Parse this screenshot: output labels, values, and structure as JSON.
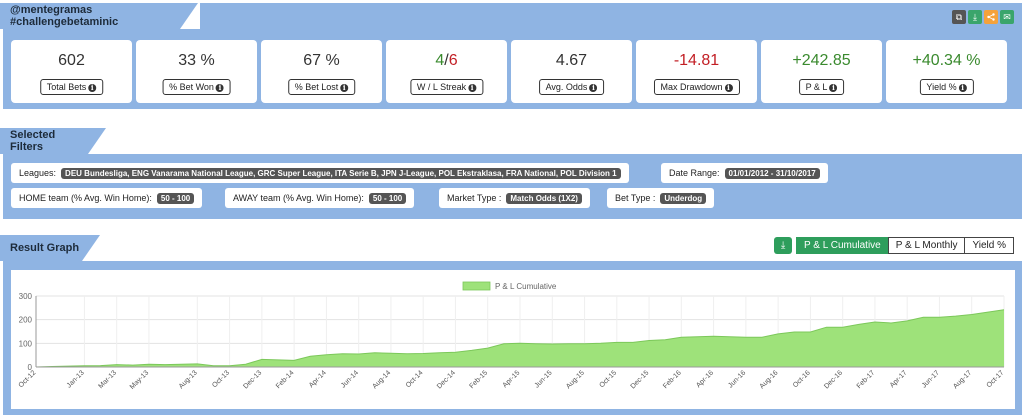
{
  "header": {
    "title": "@mentegramas #challengebetaminic",
    "actions": [
      {
        "name": "copy-icon",
        "glyph": "⧉",
        "color": "#555555"
      },
      {
        "name": "download-icon",
        "glyph": "⤓",
        "color": "#3aa56b"
      },
      {
        "name": "share-icon",
        "glyph": "<",
        "color": "#f5a23b"
      },
      {
        "name": "email-icon",
        "glyph": "✉",
        "color": "#3aa56b"
      }
    ]
  },
  "stats": [
    {
      "value": "602",
      "label": "Total Bets",
      "tone": ""
    },
    {
      "value": "33 %",
      "label": "% Bet Won",
      "tone": ""
    },
    {
      "value": "67 %",
      "label": "% Bet Lost",
      "tone": ""
    },
    {
      "value_green": "4",
      "value_sep": "/",
      "value_red": "6",
      "label": "W / L Streak",
      "tone": "streak"
    },
    {
      "value": "4.67",
      "label": "Avg. Odds",
      "tone": ""
    },
    {
      "value": "-14.81",
      "label": "Max Drawdown",
      "tone": "red"
    },
    {
      "value": "+242.85",
      "label": "P & L",
      "tone": "green"
    },
    {
      "value": "+40.34 %",
      "label": "Yield %",
      "tone": "green"
    }
  ],
  "info_glyph": "i",
  "filters": {
    "title": "Selected Filters",
    "leagues_label": "Leagues:",
    "leagues_value": "DEU Bundesliga, ENG Vanarama National League, GRC Super League, ITA Serie B, JPN J-League, POL Ekstraklasa, FRA National, POL Division 1",
    "date_label": "Date Range:",
    "date_value": "01/01/2012 - 31/10/2017",
    "home_label": "HOME team (% Avg. Win Home):",
    "home_value": "50 - 100",
    "away_label": "AWAY team (% Avg. Win Home):",
    "away_value": "50 - 100",
    "market_label": "Market Type :",
    "market_value": "Match Odds (1X2)",
    "bettype_label": "Bet Type :",
    "bettype_value": "Underdog"
  },
  "graph": {
    "title": "Result Graph",
    "download_glyph": "⤓",
    "tabs": [
      "P & L Cumulative",
      "P & L Monthly",
      "Yield %"
    ],
    "active_tab": 0
  },
  "chart_data": {
    "type": "area",
    "legend": "P & L Cumulative",
    "color": "#9ee27a",
    "ylim": [
      0,
      300
    ],
    "yticks": [
      0,
      100,
      200,
      300
    ],
    "x": [
      "Oct-12",
      "Nov-12",
      "Dec-12",
      "Jan-13",
      "Feb-13",
      "Mar-13",
      "Apr-13",
      "May-13",
      "Jun-13",
      "Jul-13",
      "Aug-13",
      "Sep-13",
      "Oct-13",
      "Nov-13",
      "Dec-13",
      "Jan-14",
      "Feb-14",
      "Mar-14",
      "Apr-14",
      "May-14",
      "Jun-14",
      "Jul-14",
      "Aug-14",
      "Sep-14",
      "Oct-14",
      "Nov-14",
      "Dec-14",
      "Jan-15",
      "Feb-15",
      "Mar-15",
      "Apr-15",
      "May-15",
      "Jun-15",
      "Jul-15",
      "Aug-15",
      "Sep-15",
      "Oct-15",
      "Nov-15",
      "Dec-15",
      "Jan-16",
      "Feb-16",
      "Mar-16",
      "Apr-16",
      "May-16",
      "Jun-16",
      "Jul-16",
      "Aug-16",
      "Sep-16",
      "Oct-16",
      "Nov-16",
      "Dec-16",
      "Jan-17",
      "Feb-17",
      "Mar-17",
      "Apr-17",
      "May-17",
      "Jun-17",
      "Jul-17",
      "Aug-17",
      "Sep-17",
      "Oct-17"
    ],
    "values": [
      0,
      2,
      4,
      5,
      6,
      10,
      8,
      12,
      10,
      12,
      13,
      5,
      5,
      12,
      32,
      30,
      28,
      45,
      52,
      56,
      55,
      60,
      58,
      56,
      57,
      60,
      62,
      70,
      80,
      98,
      100,
      98,
      97,
      98,
      98,
      100,
      104,
      104,
      112,
      115,
      126,
      128,
      130,
      128,
      126,
      126,
      140,
      148,
      148,
      168,
      168,
      180,
      190,
      186,
      195,
      210,
      210,
      215,
      222,
      232,
      242
    ],
    "tick_labels": [
      "Oct-12",
      "Jan-13",
      "Mar-13",
      "May-13",
      "Aug-13",
      "Oct-13",
      "Dec-13",
      "Feb-14",
      "Apr-14",
      "Jun-14",
      "Aug-14",
      "Oct-14",
      "Dec-14",
      "Feb-15",
      "Apr-15",
      "Jun-15",
      "Aug-15",
      "Oct-15",
      "Dec-15",
      "Feb-16",
      "Apr-16",
      "Jun-16",
      "Aug-16",
      "Oct-16",
      "Dec-16",
      "Feb-17",
      "Apr-17",
      "Jun-17",
      "Aug-17",
      "Oct-17"
    ]
  }
}
